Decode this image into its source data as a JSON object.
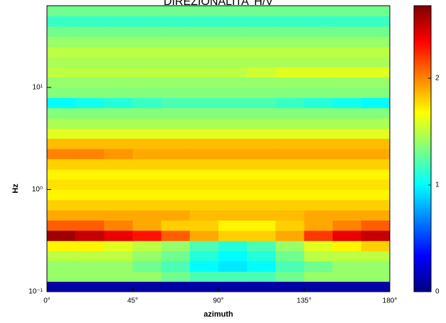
{
  "chart_data": {
    "type": "heatmap",
    "title": "DIREZIONALITA' H/V",
    "x_label": "azimuth",
    "y_label": "Hz",
    "y_log": true,
    "colormap": "jet",
    "x_edges": [
      0,
      15,
      30,
      45,
      60,
      75,
      90,
      105,
      120,
      135,
      150,
      165,
      180
    ],
    "y_edges": [
      0.1,
      0.126,
      0.158,
      0.2,
      0.251,
      0.316,
      0.398,
      0.501,
      0.631,
      0.794,
      1,
      1.26,
      1.58,
      2,
      2.51,
      3.16,
      3.98,
      5.01,
      6.31,
      7.94,
      10,
      12.6,
      15.8,
      20,
      25.1,
      31.6,
      39.8,
      50.1,
      63.1
    ],
    "xlim": [
      0,
      180
    ],
    "ylim": [
      0.1,
      63.1
    ],
    "xticks": [
      {
        "value": 0,
        "label": "0°"
      },
      {
        "value": 45,
        "label": "45°"
      },
      {
        "value": 90,
        "label": "90°"
      },
      {
        "value": 135,
        "label": "135°"
      },
      {
        "value": 180,
        "label": "180°"
      }
    ],
    "yticks": [
      {
        "value": 0.1,
        "label": "10⁻¹"
      },
      {
        "value": 1,
        "label": "10⁰"
      },
      {
        "value": 10,
        "label": "10¹"
      }
    ],
    "colorbar": {
      "lim": [
        0,
        2.68
      ],
      "ticks": [
        0,
        1,
        2
      ]
    },
    "z": [
      [
        0.1,
        0.1,
        0.1,
        0.1,
        0.1,
        0.1,
        0.1,
        0.1,
        0.1,
        0.1,
        0.1,
        0.1
      ],
      [
        1.4,
        1.4,
        1.4,
        1.4,
        1.3,
        1.2,
        1.2,
        1.2,
        1.3,
        1.4,
        1.4,
        1.4
      ],
      [
        1.4,
        1.4,
        1.4,
        1.3,
        1.2,
        1.0,
        0.95,
        1.0,
        1.2,
        1.3,
        1.4,
        1.4
      ],
      [
        1.5,
        1.5,
        1.5,
        1.4,
        1.3,
        1.1,
        1.0,
        1.1,
        1.3,
        1.5,
        1.5,
        1.5
      ],
      [
        1.7,
        1.7,
        1.6,
        1.5,
        1.4,
        1.2,
        1.1,
        1.2,
        1.4,
        1.6,
        1.7,
        1.8
      ],
      [
        2.6,
        2.5,
        2.4,
        2.3,
        2.1,
        1.9,
        1.8,
        1.8,
        1.9,
        2.2,
        2.4,
        2.5
      ],
      [
        2.1,
        2.1,
        2.0,
        1.9,
        1.8,
        1.8,
        1.7,
        1.7,
        1.8,
        1.9,
        2.0,
        2.1
      ],
      [
        1.9,
        1.9,
        1.9,
        1.9,
        1.9,
        1.85,
        1.85,
        1.85,
        1.85,
        1.9,
        1.9,
        1.9
      ],
      [
        1.8,
        1.8,
        1.8,
        1.8,
        1.8,
        1.8,
        1.8,
        1.8,
        1.8,
        1.8,
        1.8,
        1.8
      ],
      [
        1.7,
        1.7,
        1.7,
        1.7,
        1.7,
        1.7,
        1.7,
        1.7,
        1.7,
        1.7,
        1.7,
        1.7
      ],
      [
        1.75,
        1.75,
        1.75,
        1.75,
        1.75,
        1.75,
        1.75,
        1.75,
        1.75,
        1.75,
        1.75,
        1.75
      ],
      [
        1.7,
        1.7,
        1.7,
        1.7,
        1.7,
        1.7,
        1.7,
        1.7,
        1.7,
        1.7,
        1.7,
        1.7
      ],
      [
        1.8,
        1.8,
        1.8,
        1.8,
        1.8,
        1.8,
        1.8,
        1.8,
        1.8,
        1.8,
        1.8,
        1.8
      ],
      [
        2.0,
        2.0,
        1.95,
        1.9,
        1.9,
        1.9,
        1.9,
        1.9,
        1.9,
        1.9,
        1.9,
        1.9
      ],
      [
        1.85,
        1.85,
        1.85,
        1.85,
        1.85,
        1.85,
        1.85,
        1.85,
        1.85,
        1.85,
        1.85,
        1.85
      ],
      [
        1.6,
        1.6,
        1.6,
        1.6,
        1.6,
        1.6,
        1.6,
        1.6,
        1.6,
        1.6,
        1.6,
        1.6
      ],
      [
        1.45,
        1.45,
        1.45,
        1.45,
        1.45,
        1.45,
        1.45,
        1.45,
        1.45,
        1.45,
        1.45,
        1.45
      ],
      [
        1.35,
        1.35,
        1.35,
        1.35,
        1.35,
        1.35,
        1.35,
        1.35,
        1.35,
        1.35,
        1.35,
        1.35
      ],
      [
        1.0,
        1.05,
        1.1,
        1.15,
        1.2,
        1.2,
        1.2,
        1.2,
        1.15,
        1.1,
        1.05,
        1.0
      ],
      [
        1.35,
        1.35,
        1.35,
        1.35,
        1.35,
        1.35,
        1.35,
        1.35,
        1.35,
        1.35,
        1.35,
        1.35
      ],
      [
        1.4,
        1.4,
        1.4,
        1.4,
        1.4,
        1.4,
        1.4,
        1.4,
        1.4,
        1.4,
        1.4,
        1.4
      ],
      [
        1.5,
        1.5,
        1.5,
        1.5,
        1.5,
        1.5,
        1.5,
        1.55,
        1.6,
        1.6,
        1.6,
        1.6
      ],
      [
        1.45,
        1.45,
        1.45,
        1.45,
        1.45,
        1.45,
        1.45,
        1.45,
        1.45,
        1.45,
        1.45,
        1.45
      ],
      [
        1.5,
        1.5,
        1.5,
        1.5,
        1.5,
        1.5,
        1.5,
        1.5,
        1.5,
        1.5,
        1.5,
        1.5
      ],
      [
        1.4,
        1.4,
        1.4,
        1.4,
        1.4,
        1.4,
        1.4,
        1.4,
        1.4,
        1.4,
        1.4,
        1.4
      ],
      [
        1.3,
        1.3,
        1.3,
        1.3,
        1.3,
        1.3,
        1.3,
        1.3,
        1.3,
        1.3,
        1.3,
        1.3
      ],
      [
        1.15,
        1.15,
        1.15,
        1.15,
        1.15,
        1.15,
        1.15,
        1.15,
        1.15,
        1.15,
        1.15,
        1.15
      ],
      [
        1.3,
        1.3,
        1.3,
        1.3,
        1.3,
        1.3,
        1.3,
        1.3,
        1.3,
        1.3,
        1.3,
        1.3
      ]
    ]
  }
}
